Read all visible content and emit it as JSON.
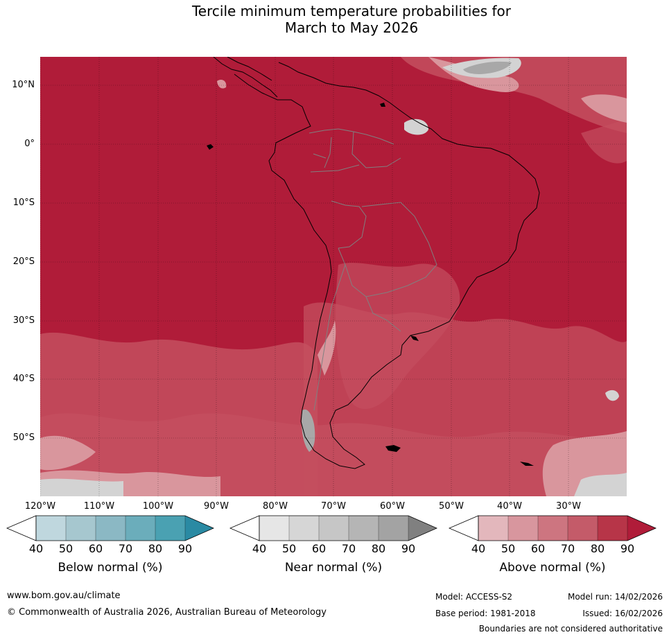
{
  "title_line1": "Tercile minimum temperature probabilities for",
  "title_line2": "March to May 2026",
  "lat_labels": [
    "10°N",
    "0°",
    "10°S",
    "20°S",
    "30°S",
    "40°S",
    "50°S"
  ],
  "lon_labels": [
    "120°W",
    "110°W",
    "100°W",
    "90°W",
    "80°W",
    "70°W",
    "60°W",
    "50°W",
    "40°W",
    "30°W"
  ],
  "colors": {
    "above_dominant": "#b01c39",
    "above_mid": "#c44f5f",
    "above_light": "#d9969d",
    "near_light": "#d3d3d3",
    "near_mid": "#a8a8a8",
    "coast": "#000000",
    "border": "#808080"
  },
  "colorbars": [
    {
      "label": "Below normal (%)",
      "ticks": [
        "40",
        "50",
        "60",
        "70",
        "80",
        "90"
      ],
      "colors": [
        "#bfd7de",
        "#a6c7cf",
        "#8bb8c4",
        "#6badbb",
        "#4aa1b2",
        "#2a8aa3"
      ]
    },
    {
      "label": "Near normal (%)",
      "ticks": [
        "40",
        "50",
        "60",
        "70",
        "80",
        "90"
      ],
      "colors": [
        "#e6e6e6",
        "#d6d6d6",
        "#c6c6c6",
        "#b5b5b5",
        "#a3a3a3",
        "#808080"
      ]
    },
    {
      "label": "Above normal (%)",
      "ticks": [
        "40",
        "50",
        "60",
        "70",
        "80",
        "90"
      ],
      "colors": [
        "#e3b7bc",
        "#d8969e",
        "#cd7580",
        "#c45b69",
        "#b73548",
        "#b01c39"
      ]
    }
  ],
  "footer": {
    "website": "www.bom.gov.au/climate",
    "copyright": "© Commonwealth of Australia 2026, Australian Bureau of Meteorology",
    "model": "Model: ACCESS-S2",
    "model_run": "Model run: 14/02/2026",
    "base_period": "Base period: 1981-2018",
    "issued": "Issued: 16/02/2026",
    "disclaimer": "Boundaries are not considered authoritative"
  }
}
